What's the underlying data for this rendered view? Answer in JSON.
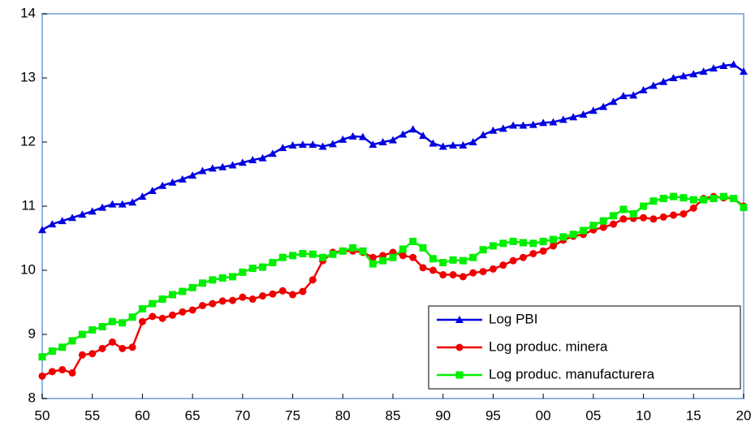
{
  "chart_data": {
    "type": "line",
    "x": [
      1950,
      1951,
      1952,
      1953,
      1954,
      1955,
      1956,
      1957,
      1958,
      1959,
      1960,
      1961,
      1962,
      1963,
      1964,
      1965,
      1966,
      1967,
      1968,
      1969,
      1970,
      1971,
      1972,
      1973,
      1974,
      1975,
      1976,
      1977,
      1978,
      1979,
      1980,
      1981,
      1982,
      1983,
      1984,
      1985,
      1986,
      1987,
      1988,
      1989,
      1990,
      1991,
      1992,
      1993,
      1994,
      1995,
      1996,
      1997,
      1998,
      1999,
      2000,
      2001,
      2002,
      2003,
      2004,
      2005,
      2006,
      2007,
      2008,
      2009,
      2010,
      2011,
      2012,
      2013,
      2014,
      2015,
      2016,
      2017,
      2018,
      2019,
      2020
    ],
    "series": [
      {
        "name": "Log PBI",
        "color": "#0000e0",
        "marker": "triangle",
        "values": [
          10.63,
          10.72,
          10.77,
          10.82,
          10.87,
          10.92,
          10.98,
          11.03,
          11.03,
          11.06,
          11.15,
          11.24,
          11.32,
          11.37,
          11.42,
          11.48,
          11.55,
          11.59,
          11.61,
          11.64,
          11.68,
          11.72,
          11.75,
          11.82,
          11.91,
          11.95,
          11.96,
          11.96,
          11.93,
          11.97,
          12.04,
          12.09,
          12.08,
          11.96,
          12.0,
          12.03,
          12.12,
          12.2,
          12.1,
          11.98,
          11.93,
          11.95,
          11.95,
          12.0,
          12.11,
          12.18,
          12.21,
          12.26,
          12.26,
          12.27,
          12.3,
          12.31,
          12.35,
          12.39,
          12.43,
          12.49,
          12.55,
          12.63,
          12.72,
          12.73,
          12.81,
          12.88,
          12.94,
          13.0,
          13.03,
          13.06,
          13.1,
          13.15,
          13.19,
          13.21,
          13.1
        ]
      },
      {
        "name": "Log produc. minera",
        "color": "#ee0000",
        "marker": "circle",
        "values": [
          8.35,
          8.42,
          8.45,
          8.4,
          8.68,
          8.7,
          8.78,
          8.88,
          8.78,
          8.8,
          9.2,
          9.28,
          9.25,
          9.3,
          9.35,
          9.38,
          9.45,
          9.48,
          9.52,
          9.53,
          9.58,
          9.55,
          9.6,
          9.63,
          9.68,
          9.62,
          9.67,
          9.85,
          10.15,
          10.28,
          10.3,
          10.3,
          10.28,
          10.2,
          10.23,
          10.28,
          10.23,
          10.2,
          10.04,
          10.0,
          9.93,
          9.93,
          9.9,
          9.96,
          9.98,
          10.02,
          10.08,
          10.15,
          10.2,
          10.26,
          10.3,
          10.38,
          10.47,
          10.53,
          10.56,
          10.63,
          10.67,
          10.72,
          10.8,
          10.81,
          10.82,
          10.8,
          10.83,
          10.86,
          10.88,
          10.97,
          11.12,
          11.15,
          11.13,
          11.12,
          11.0
        ]
      },
      {
        "name": "Log produc. manufacturera",
        "color": "#00ee00",
        "marker": "square",
        "values": [
          8.65,
          8.74,
          8.8,
          8.9,
          9.0,
          9.07,
          9.12,
          9.2,
          9.18,
          9.27,
          9.4,
          9.48,
          9.55,
          9.62,
          9.67,
          9.73,
          9.8,
          9.85,
          9.88,
          9.9,
          9.97,
          10.03,
          10.05,
          10.12,
          10.2,
          10.23,
          10.26,
          10.25,
          10.2,
          10.25,
          10.3,
          10.35,
          10.3,
          10.1,
          10.15,
          10.2,
          10.33,
          10.45,
          10.35,
          10.18,
          10.12,
          10.16,
          10.15,
          10.2,
          10.32,
          10.38,
          10.42,
          10.45,
          10.43,
          10.42,
          10.45,
          10.48,
          10.52,
          10.56,
          10.62,
          10.7,
          10.77,
          10.85,
          10.95,
          10.88,
          11.0,
          11.08,
          11.12,
          11.15,
          11.13,
          11.1,
          11.1,
          11.12,
          11.15,
          11.12,
          10.98
        ]
      }
    ],
    "xlim": [
      1950,
      2020
    ],
    "xticks": [
      {
        "value": 1950,
        "label": "50"
      },
      {
        "value": 1955,
        "label": "55"
      },
      {
        "value": 1960,
        "label": "60"
      },
      {
        "value": 1965,
        "label": "65"
      },
      {
        "value": 1970,
        "label": "70"
      },
      {
        "value": 1975,
        "label": "75"
      },
      {
        "value": 1980,
        "label": "80"
      },
      {
        "value": 1985,
        "label": "85"
      },
      {
        "value": 1990,
        "label": "90"
      },
      {
        "value": 1995,
        "label": "95"
      },
      {
        "value": 2000,
        "label": "00"
      },
      {
        "value": 2005,
        "label": "05"
      },
      {
        "value": 2010,
        "label": "10"
      },
      {
        "value": 2015,
        "label": "15"
      },
      {
        "value": 2020,
        "label": "20"
      }
    ],
    "ylim": [
      8,
      14
    ],
    "yticks": [
      8,
      9,
      10,
      11,
      12,
      13,
      14
    ],
    "grid": false,
    "legend": "lower right"
  }
}
